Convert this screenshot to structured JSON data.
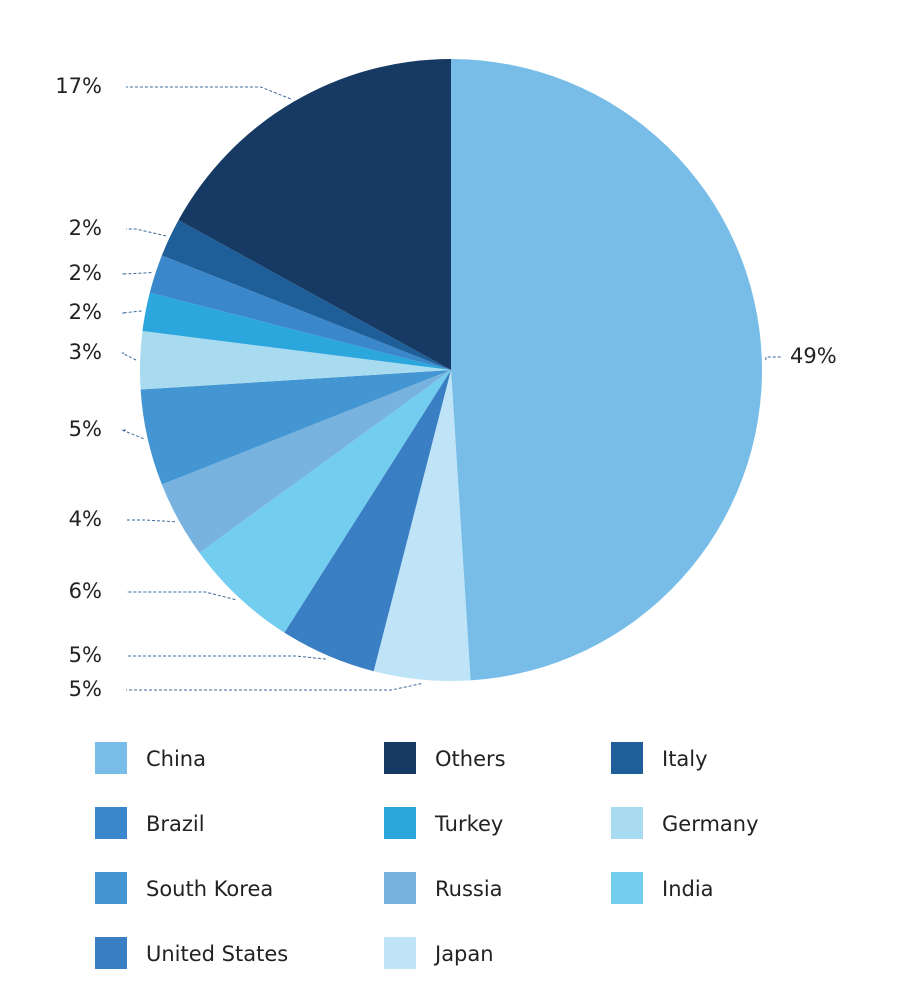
{
  "chart_data": {
    "type": "pie",
    "categories": [
      "China",
      "Japan",
      "United States",
      "India",
      "Russia",
      "South Korea",
      "Germany",
      "Turkey",
      "Brazil",
      "Italy",
      "Others"
    ],
    "values": [
      49,
      5,
      5,
      6,
      4,
      5,
      3,
      2,
      2,
      2,
      17
    ],
    "value_labels": [
      "49%",
      "5%",
      "5%",
      "6%",
      "4%",
      "5%",
      "3%",
      "2%",
      "2%",
      "2%",
      "17%"
    ],
    "colors": [
      "#77bde8",
      "#bfe3f7",
      "#3a7fc4",
      "#72cdef",
      "#78b3e0",
      "#4396d2",
      "#a9dbf0",
      "#2ba7de",
      "#3b87cb",
      "#1f5f99",
      "#163a63"
    ]
  }
}
